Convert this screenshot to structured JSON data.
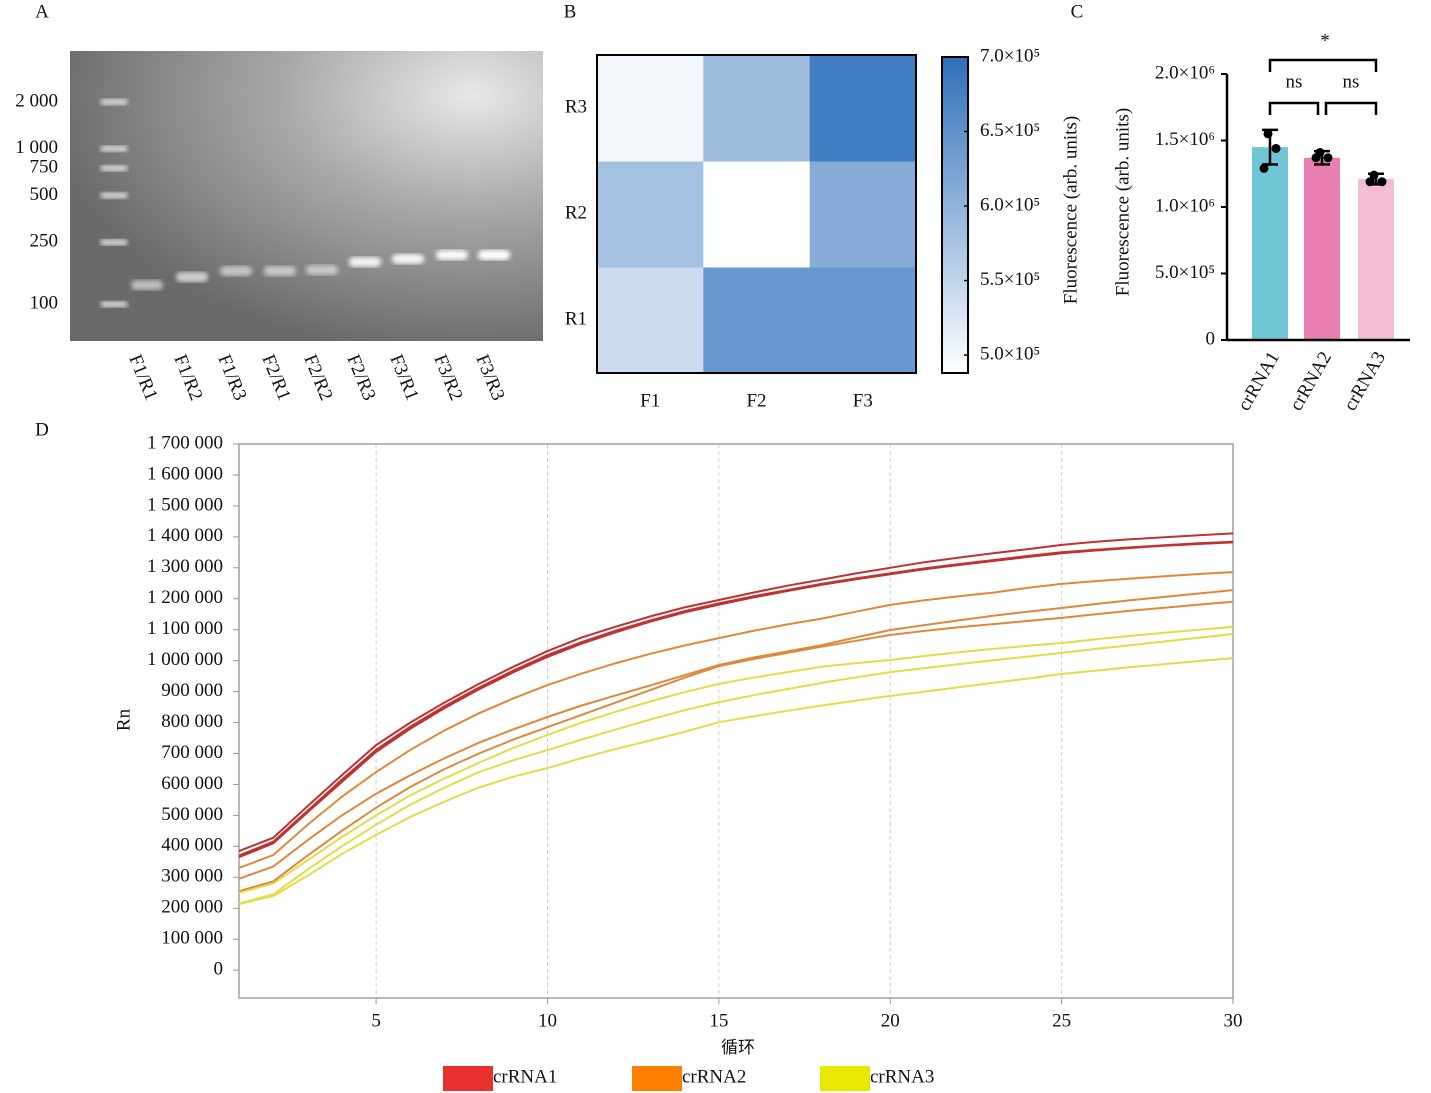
{
  "chart_data": [
    {
      "type": "gel",
      "panel": "A",
      "categories": [
        "F1/R1",
        "F1/R2",
        "F1/R3",
        "F2/R1",
        "F2/R2",
        "F2/R3",
        "F3/R1",
        "F3/R2",
        "F3/R3"
      ],
      "log_scale": true,
      "ylim": [
        58,
        4250
      ],
      "yticks": [
        {
          "value": 2000,
          "label": "2 000"
        },
        {
          "value": 1000,
          "label": "1 000"
        },
        750,
        500,
        250,
        100
      ]
    },
    {
      "type": "heatmap",
      "panel": "B",
      "x_categories": [
        "F1",
        "F2",
        "F3"
      ],
      "y_categories": [
        "R1",
        "R2",
        "R3"
      ],
      "values": [
        [
          540000,
          640000,
          640000
        ],
        [
          580000,
          490000,
          610000
        ],
        [
          500000,
          585000,
          680000
        ]
      ],
      "colormap": [
        "#ffffff",
        "#2e6fba"
      ],
      "zlim": [
        488000,
        700000
      ],
      "zticks": [
        {
          "value": 500000,
          "label": "5.0×10⁵"
        },
        {
          "value": 550000,
          "label": "5.5×10⁵"
        },
        {
          "value": 600000,
          "label": "6.0×10⁵"
        },
        {
          "value": 650000,
          "label": "6.5×10⁵"
        },
        {
          "value": 700000,
          "label": "7.0×10⁵"
        }
      ],
      "colorbar_label": "Fluorescence (arb. units)"
    },
    {
      "type": "bar",
      "panel": "C",
      "categories": [
        "crRNA1",
        "crRNA2",
        "crRNA3"
      ],
      "values": [
        1450000,
        1370000,
        1210000
      ],
      "errors": [
        130000,
        50000,
        40000
      ],
      "points": [
        [
          1550000,
          1440000,
          1290000
        ],
        [
          1410000,
          1370000,
          1370000
        ],
        [
          1240000,
          1190000,
          1190000
        ]
      ],
      "colors": [
        "#6fc7d6",
        "#ea7fb1",
        "#f4bdd6"
      ],
      "ylabel": "Fluorescence (arb. units)",
      "ylim": [
        0,
        2000000
      ],
      "yticks": [
        0,
        {
          "value": 500000,
          "label": "5.0×10⁵"
        },
        {
          "value": 1000000,
          "label": "1.0×10⁶"
        },
        {
          "value": 1500000,
          "label": "1.5×10⁶"
        },
        {
          "value": 2000000,
          "label": "2.0×10⁶"
        }
      ],
      "annotations": [
        "ns",
        "ns",
        "*"
      ]
    },
    {
      "type": "line",
      "panel": "D",
      "xlabel": "循环",
      "ylabel": "Rn",
      "x": [
        1,
        2,
        3,
        4,
        5,
        6,
        7,
        8,
        9,
        10,
        11,
        12,
        13,
        14,
        15,
        16,
        17,
        18,
        19,
        20,
        21,
        22,
        23,
        24,
        25,
        26,
        27,
        28,
        29,
        30
      ],
      "xlim": [
        1,
        30
      ],
      "xticks": [
        5,
        10,
        15,
        20,
        25,
        30
      ],
      "ylim": [
        -90000,
        1700000
      ],
      "yticks": [
        {
          "value": 0,
          "label": "0"
        },
        {
          "value": 100000,
          "label": "100 000"
        },
        {
          "value": 200000,
          "label": "200 000"
        },
        {
          "value": 300000,
          "label": "300 000"
        },
        {
          "value": 400000,
          "label": "400 000"
        },
        {
          "value": 500000,
          "label": "500 000"
        },
        {
          "value": 600000,
          "label": "600 000"
        },
        {
          "value": 700000,
          "label": "700 000"
        },
        {
          "value": 800000,
          "label": "800 000"
        },
        {
          "value": 900000,
          "label": "900 000"
        },
        {
          "value": 1000000,
          "label": "1 000 000"
        },
        {
          "value": 1100000,
          "label": "1 100 000"
        },
        {
          "value": 1200000,
          "label": "1 200 000"
        },
        {
          "value": 1300000,
          "label": "1 300 000"
        },
        {
          "value": 1400000,
          "label": "1 400 000"
        },
        {
          "value": 1500000,
          "label": "1 500 000"
        },
        {
          "value": 1600000,
          "label": "1 600 000"
        },
        {
          "value": 1700000,
          "label": "1 700 000"
        }
      ],
      "grid": "x",
      "series": [
        {
          "name": "crRNA1",
          "color": "#e8312f",
          "line_color": "#c23030",
          "values": [
            [
              385000,
              428000,
              530000,
              630000,
              727000,
              800000,
              865000,
              925000,
              980000,
              1031000,
              1075000,
              1110000,
              1143000,
              1172000,
              1196000,
              1220000,
              1242000,
              1262000,
              1282000,
              1300000,
              1318000,
              1333000,
              1347000,
              1360000,
              1374000,
              1384000,
              1392000,
              1399000,
              1405000,
              1411000
            ],
            [
              370000,
              415000,
              515000,
              615000,
              712000,
              787000,
              853000,
              913000,
              968000,
              1018000,
              1060000,
              1097000,
              1130000,
              1160000,
              1185000,
              1208000,
              1228000,
              1248000,
              1266000,
              1282000,
              1298000,
              1312000,
              1325000,
              1338000,
              1350000,
              1358000,
              1366000,
              1373000,
              1379000,
              1384000
            ],
            [
              365000,
              410000,
              510000,
              608000,
              705000,
              780000,
              847000,
              907000,
              962000,
              1012000,
              1055000,
              1092000,
              1126000,
              1156000,
              1181000,
              1204000,
              1225000,
              1245000,
              1263000,
              1279000,
              1295000,
              1309000,
              1322000,
              1335000,
              1347000,
              1356000,
              1364000,
              1371000,
              1377000,
              1382000
            ]
          ]
        },
        {
          "name": "crRNA2",
          "color": "#ff7f00",
          "line_color": "#e2873a",
          "values": [
            [
              330000,
              372000,
              470000,
              560000,
              640000,
              712000,
              775000,
              830000,
              878000,
              921000,
              958000,
              992000,
              1022000,
              1049000,
              1073000,
              1096000,
              1117000,
              1136000,
              1158000,
              1180000,
              1195000,
              1208000,
              1220000,
              1235000,
              1248000,
              1257000,
              1265000,
              1273000,
              1280000,
              1286000
            ],
            [
              295000,
              335000,
              420000,
              500000,
              570000,
              630000,
              685000,
              735000,
              778000,
              818000,
              855000,
              888000,
              920000,
              953000,
              986000,
              1010000,
              1030000,
              1050000,
              1075000,
              1099000,
              1115000,
              1130000,
              1145000,
              1158000,
              1170000,
              1183000,
              1195000,
              1206000,
              1217000,
              1228000
            ],
            [
              255000,
              287000,
              370000,
              450000,
              525000,
              592000,
              650000,
              700000,
              745000,
              785000,
              825000,
              865000,
              905000,
              945000,
              982000,
              1005000,
              1025000,
              1045000,
              1064000,
              1083000,
              1096000,
              1108000,
              1118000,
              1128000,
              1138000,
              1150000,
              1161000,
              1171000,
              1181000,
              1190000
            ]
          ]
        },
        {
          "name": "crRNA3",
          "color": "#e8e800",
          "line_color": "#e3dc48",
          "values": [
            [
              250000,
              280000,
              355000,
              430000,
              500000,
              565000,
              620000,
              670000,
              718000,
              760000,
              800000,
              835000,
              868000,
              898000,
              925000,
              945000,
              963000,
              980000,
              992000,
              1002000,
              1015000,
              1027000,
              1038000,
              1048000,
              1057000,
              1069000,
              1080000,
              1090000,
              1100000,
              1109000
            ],
            [
              215000,
              245000,
              325000,
              400000,
              470000,
              535000,
              590000,
              640000,
              678000,
              711000,
              745000,
              778000,
              810000,
              840000,
              866000,
              888000,
              908000,
              928000,
              946000,
              963000,
              976000,
              989000,
              1001000,
              1013000,
              1025000,
              1038000,
              1050000,
              1062000,
              1074000,
              1086000
            ],
            [
              213000,
              240000,
              305000,
              375000,
              437000,
              495000,
              545000,
              590000,
              625000,
              653000,
              685000,
              715000,
              742000,
              770000,
              801000,
              820000,
              838000,
              855000,
              871000,
              886000,
              900000,
              914000,
              928000,
              942000,
              957000,
              968000,
              979000,
              989000,
              999000,
              1008000
            ]
          ]
        }
      ]
    }
  ]
}
